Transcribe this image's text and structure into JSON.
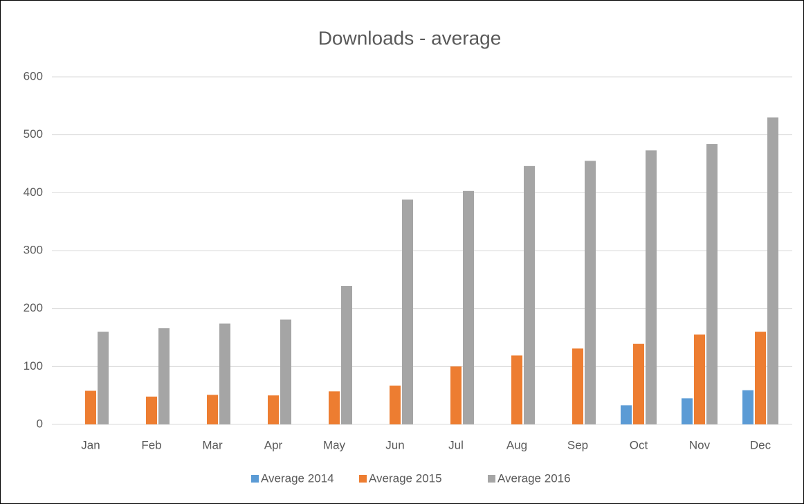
{
  "chart_data": {
    "type": "bar",
    "title": "Downloads - average",
    "categories": [
      "Jan",
      "Feb",
      "Mar",
      "Apr",
      "May",
      "Jun",
      "Jul",
      "Aug",
      "Sep",
      "Oct",
      "Nov",
      "Dec"
    ],
    "series": [
      {
        "name": "Average 2014",
        "color": "#5b9bd5",
        "values": [
          null,
          null,
          null,
          null,
          null,
          null,
          null,
          null,
          null,
          33,
          45,
          59
        ]
      },
      {
        "name": "Average 2015",
        "color": "#ed7d31",
        "values": [
          58,
          48,
          51,
          50,
          57,
          67,
          100,
          119,
          131,
          139,
          155,
          160
        ]
      },
      {
        "name": "Average 2016",
        "color": "#a5a5a5",
        "values": [
          160,
          166,
          174,
          181,
          239,
          388,
          403,
          446,
          455,
          473,
          484,
          530
        ]
      }
    ],
    "ylim": [
      0,
      600
    ],
    "yticks": [
      0,
      100,
      200,
      300,
      400,
      500,
      600
    ],
    "grid": true,
    "legend": "bottom"
  }
}
